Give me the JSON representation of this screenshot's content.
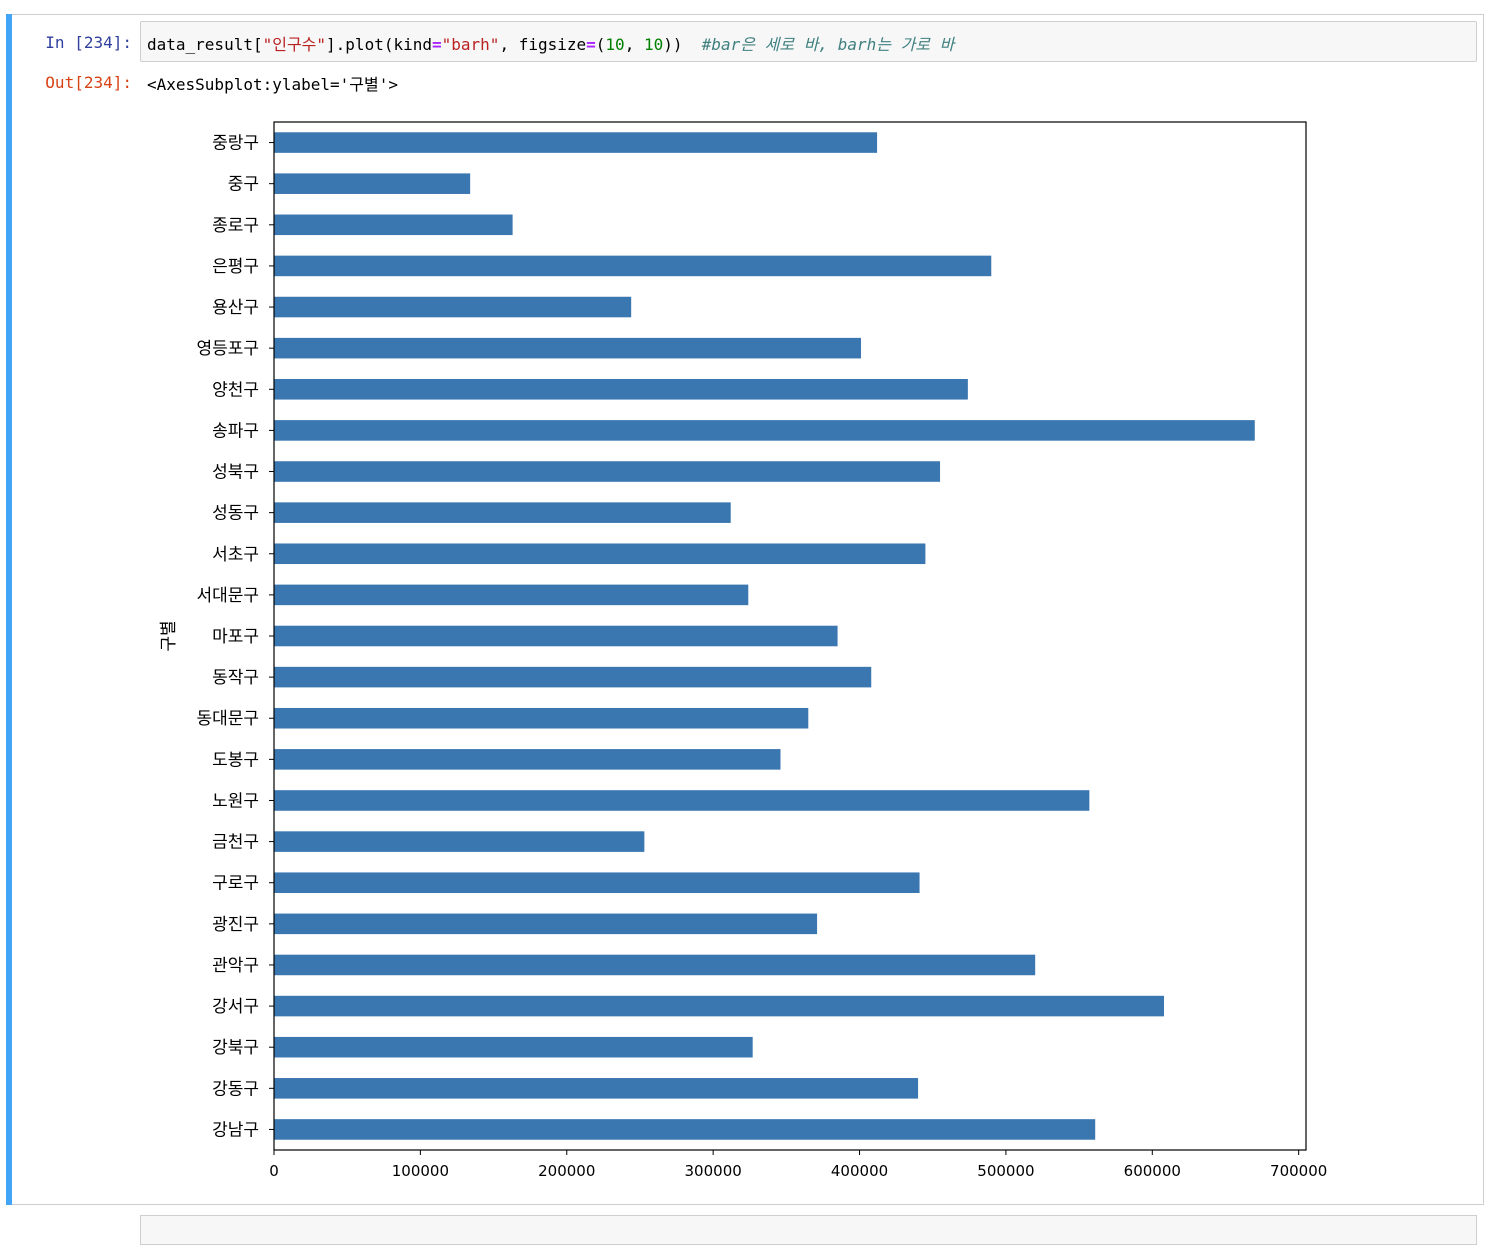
{
  "cell": {
    "in_prompt": "In [234]:",
    "out_prompt": "Out[234]:",
    "code": {
      "p1": "data_result[",
      "s1": "\"인구수\"",
      "p2": "].plot(kind",
      "op1": "=",
      "s2": "\"barh\"",
      "p3": ", figsize",
      "op2": "=",
      "p4": "(",
      "n1": "10",
      "p5": ", ",
      "n2": "10",
      "p6": "))  ",
      "comment": "#bar은 세로 바, barh는 가로 바"
    },
    "output_text": "<AxesSubplot:ylabel='구별'>"
  },
  "colors": {
    "bar": "#3a76b0",
    "cell_bar": "#42a5f5",
    "in_prompt": "#303f9f",
    "out_prompt": "#d84315"
  },
  "chart_data": {
    "type": "bar",
    "orientation": "horizontal",
    "title": "",
    "xlabel": "",
    "ylabel": "구별",
    "categories": [
      "중랑구",
      "중구",
      "종로구",
      "은평구",
      "용산구",
      "영등포구",
      "양천구",
      "송파구",
      "성북구",
      "성동구",
      "서초구",
      "서대문구",
      "마포구",
      "동작구",
      "동대문구",
      "도봉구",
      "노원구",
      "금천구",
      "구로구",
      "광진구",
      "관악구",
      "강서구",
      "강북구",
      "강동구",
      "강남구"
    ],
    "values": [
      412000,
      134000,
      163000,
      490000,
      244000,
      401000,
      474000,
      670000,
      455000,
      312000,
      445000,
      324000,
      385000,
      408000,
      365000,
      346000,
      557000,
      253000,
      441000,
      371000,
      520000,
      608000,
      327000,
      440000,
      561000
    ],
    "xlim": [
      0,
      705000
    ],
    "xticks": [
      0,
      100000,
      200000,
      300000,
      400000,
      500000,
      600000,
      700000
    ],
    "grid": false,
    "legend": "none"
  }
}
